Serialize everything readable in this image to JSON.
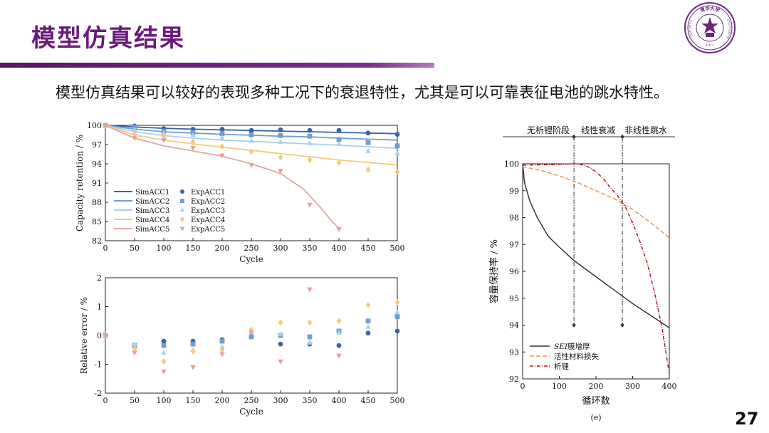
{
  "slide": {
    "title": "模型仿真结果",
    "subtitle": "模型仿真结果可以较好的表现多种工况下的衰退特性，尤其是可以可靠表征电池的跳水特性。",
    "page_number": "27",
    "logo": {
      "icon": "tsinghua-university-seal-icon",
      "text_top": "清华大学",
      "text_left": "TSINGHUA",
      "text_right": "UNIVERSITY",
      "year": "1911"
    },
    "accent_color": "#6a1b7a"
  },
  "chart_data": [
    {
      "type": "line",
      "ylabel": "Capacity retention / %",
      "xlabel": "Cycle",
      "xlim": [
        0,
        500
      ],
      "ylim": [
        82,
        100
      ],
      "xticks": [
        0,
        50,
        100,
        150,
        200,
        250,
        300,
        350,
        400,
        450,
        500
      ],
      "yticks": [
        82,
        85,
        88,
        91,
        94,
        97,
        100
      ],
      "legend_position": "bottom-left",
      "series": [
        {
          "name": "SimACC1",
          "kind": "line",
          "color": "#3a64a4",
          "x": [
            0,
            50,
            100,
            150,
            200,
            250,
            300,
            350,
            400,
            450,
            500
          ],
          "y": [
            100,
            99.75,
            99.55,
            99.4,
            99.3,
            99.2,
            99.1,
            99.0,
            98.9,
            98.8,
            98.7
          ]
        },
        {
          "name": "SimACC2",
          "kind": "line",
          "color": "#6f9fcf",
          "x": [
            0,
            50,
            100,
            150,
            200,
            250,
            300,
            350,
            400,
            450,
            500
          ],
          "y": [
            100,
            99.4,
            99.0,
            98.8,
            98.6,
            98.45,
            98.3,
            98.2,
            98.0,
            97.85,
            97.7
          ]
        },
        {
          "name": "SimACC3",
          "kind": "line",
          "color": "#a8d0ee",
          "x": [
            0,
            50,
            100,
            150,
            200,
            250,
            300,
            350,
            400,
            450,
            500
          ],
          "y": [
            100,
            99.0,
            98.4,
            98.0,
            97.7,
            97.5,
            97.3,
            97.1,
            96.9,
            96.65,
            96.4
          ]
        },
        {
          "name": "SimACC4",
          "kind": "line",
          "color": "#f4c978",
          "x": [
            0,
            50,
            100,
            150,
            200,
            250,
            300,
            350,
            400,
            450,
            500
          ],
          "y": [
            100,
            98.5,
            97.7,
            97.1,
            96.6,
            96.1,
            95.6,
            95.1,
            94.6,
            94.2,
            93.8
          ]
        },
        {
          "name": "SimACC5",
          "kind": "line",
          "color": "#e2a7a3",
          "x": [
            0,
            50,
            100,
            150,
            200,
            250,
            300,
            340,
            370,
            390,
            400
          ],
          "y": [
            100,
            98.0,
            96.8,
            96.0,
            95.2,
            94.0,
            92.5,
            90.0,
            87.0,
            84.8,
            84.0
          ]
        },
        {
          "name": "ExpACC1",
          "kind": "scatter",
          "marker": "circle",
          "color": "#3a64a4",
          "x": [
            0,
            50,
            100,
            150,
            200,
            250,
            300,
            350,
            400,
            450,
            500
          ],
          "y": [
            100,
            99.9,
            99.5,
            99.4,
            99.4,
            99.2,
            99.3,
            99.2,
            99.2,
            98.8,
            98.6
          ]
        },
        {
          "name": "ExpACC2",
          "kind": "scatter",
          "marker": "square",
          "color": "#6f9fcf",
          "x": [
            0,
            50,
            100,
            150,
            200,
            250,
            300,
            350,
            400,
            450,
            500
          ],
          "y": [
            100,
            99.7,
            99.1,
            98.9,
            98.7,
            98.5,
            98.4,
            98.3,
            97.8,
            97.3,
            96.8
          ]
        },
        {
          "name": "ExpACC3",
          "kind": "scatter",
          "marker": "triangle-up",
          "color": "#a8d0ee",
          "x": [
            0,
            50,
            100,
            150,
            200,
            250,
            300,
            350,
            400,
            450,
            500
          ],
          "y": [
            100,
            99.3,
            98.8,
            98.5,
            98.1,
            97.6,
            97.4,
            97.2,
            97.1,
            96.0,
            95.6
          ]
        },
        {
          "name": "ExpACC4",
          "kind": "scatter",
          "marker": "diamond",
          "color": "#f4c978",
          "x": [
            0,
            50,
            100,
            150,
            200,
            250,
            300,
            350,
            400,
            450,
            500
          ],
          "y": [
            100,
            98.6,
            98.3,
            97.4,
            96.7,
            95.9,
            95.0,
            94.6,
            94.2,
            93.1,
            92.7
          ]
        },
        {
          "name": "ExpACC5",
          "kind": "scatter",
          "marker": "triangle-down",
          "color": "#e89b9b",
          "x": [
            0,
            50,
            100,
            150,
            200,
            250,
            300,
            350,
            400
          ],
          "y": [
            100,
            98.0,
            97.7,
            96.5,
            95.3,
            93.8,
            92.9,
            87.6,
            83.8
          ]
        }
      ]
    },
    {
      "type": "scatter",
      "ylabel": "Relative error / %",
      "xlabel": "Cycle",
      "xlim": [
        0,
        500
      ],
      "ylim": [
        -2,
        2
      ],
      "xticks": [
        0,
        50,
        100,
        150,
        200,
        250,
        300,
        350,
        400,
        450,
        500
      ],
      "yticks": [
        -2,
        -1,
        0,
        1,
        2
      ],
      "series": [
        {
          "name": "ACC1",
          "marker": "circle",
          "color": "#3a64a4",
          "x": [
            0,
            50,
            100,
            150,
            200,
            250,
            300,
            350,
            400,
            450,
            500
          ],
          "y": [
            0,
            -0.4,
            -0.2,
            -0.2,
            -0.15,
            -0.05,
            -0.3,
            -0.3,
            -0.35,
            0.08,
            0.15
          ]
        },
        {
          "name": "ACC2",
          "marker": "square",
          "color": "#6f9fcf",
          "x": [
            0,
            50,
            100,
            150,
            200,
            250,
            300,
            350,
            400,
            450,
            500
          ],
          "y": [
            0,
            -0.35,
            -0.35,
            -0.3,
            -0.2,
            -0.05,
            0.0,
            -0.05,
            0.15,
            0.5,
            0.65
          ]
        },
        {
          "name": "ACC3",
          "marker": "triangle-up",
          "color": "#a8d0ee",
          "x": [
            0,
            50,
            100,
            150,
            200,
            250,
            300,
            350,
            400,
            450,
            500
          ],
          "y": [
            0,
            -0.3,
            -0.6,
            -0.5,
            -0.4,
            0.1,
            0.05,
            -0.25,
            0.1,
            0.3,
            0.8
          ]
        },
        {
          "name": "ACC4",
          "marker": "diamond",
          "color": "#f4c978",
          "x": [
            0,
            50,
            100,
            150,
            200,
            250,
            300,
            350,
            400,
            450,
            500
          ],
          "y": [
            0,
            -0.45,
            -0.9,
            -0.55,
            -0.5,
            0.2,
            0.45,
            0.45,
            0.5,
            1.05,
            1.15
          ]
        },
        {
          "name": "ACC5",
          "marker": "triangle-down",
          "color": "#e89b9b",
          "x": [
            0,
            50,
            100,
            150,
            200,
            250,
            300,
            350,
            400
          ],
          "y": [
            0,
            -0.6,
            -1.25,
            -1.1,
            -0.65,
            0.1,
            -0.9,
            1.6,
            -0.7
          ]
        }
      ]
    },
    {
      "type": "line",
      "ylabel": "容量保持率 / %",
      "xlabel": "循环数",
      "caption": "(e)",
      "xlim": [
        0,
        400
      ],
      "ylim": [
        92,
        100
      ],
      "xticks": [
        0,
        100,
        200,
        300,
        400
      ],
      "yticks": [
        92,
        93,
        94,
        95,
        96,
        97,
        98,
        99,
        100
      ],
      "stages": [
        {
          "label": "无析锂阶段",
          "x_end": 140
        },
        {
          "label": "线性衰减",
          "x_end": 272
        },
        {
          "label": "非线性跳水",
          "x_end": 400
        }
      ],
      "stage_boundaries_x": [
        140,
        272
      ],
      "stage_boundary_marker_y": 94,
      "legend_position": "bottom-left",
      "series": [
        {
          "name": "SEI膜增厚",
          "name_italic_part": "SEI",
          "name_rest": "膜增厚",
          "style": "solid",
          "color": "#333333",
          "x": [
            0,
            5,
            20,
            40,
            70,
            100,
            140,
            180,
            220,
            260,
            300,
            350,
            400
          ],
          "y": [
            100,
            99.3,
            98.6,
            98.0,
            97.3,
            96.9,
            96.4,
            96.0,
            95.6,
            95.2,
            94.8,
            94.35,
            93.9
          ]
        },
        {
          "name": "活性材料损失",
          "style": "dashed",
          "color": "#f0914b",
          "x": [
            0,
            50,
            100,
            150,
            200,
            250,
            300,
            350,
            400
          ],
          "y": [
            99.9,
            99.75,
            99.55,
            99.3,
            99.0,
            98.7,
            98.3,
            97.8,
            97.25
          ]
        },
        {
          "name": "析锂",
          "style": "dash-dot",
          "color": "#b0141e",
          "x": [
            0,
            100,
            140,
            160,
            180,
            200,
            220,
            240,
            260,
            280,
            300,
            320,
            340,
            360,
            380,
            400
          ],
          "y": [
            99.95,
            99.98,
            100,
            99.97,
            99.88,
            99.7,
            99.45,
            99.1,
            98.8,
            98.4,
            97.8,
            97.1,
            96.3,
            95.2,
            93.9,
            92.2
          ]
        }
      ]
    }
  ]
}
